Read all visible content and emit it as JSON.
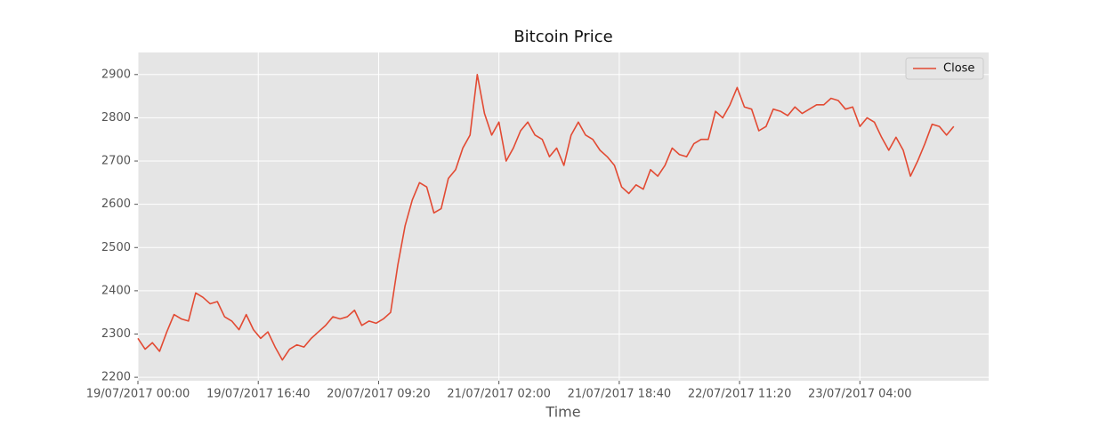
{
  "chart_data": {
    "type": "line",
    "title": "Bitcoin Price",
    "x_label": "Time",
    "x": [
      "2017-07-19T00:00",
      "2017-07-19T01:00",
      "2017-07-19T02:00",
      "2017-07-19T03:00",
      "2017-07-19T04:00",
      "2017-07-19T05:00",
      "2017-07-19T06:00",
      "2017-07-19T07:00",
      "2017-07-19T08:00",
      "2017-07-19T09:00",
      "2017-07-19T10:00",
      "2017-07-19T11:00",
      "2017-07-19T12:00",
      "2017-07-19T13:00",
      "2017-07-19T14:00",
      "2017-07-19T15:00",
      "2017-07-19T16:00",
      "2017-07-19T17:00",
      "2017-07-19T18:00",
      "2017-07-19T19:00",
      "2017-07-19T20:00",
      "2017-07-19T21:00",
      "2017-07-19T22:00",
      "2017-07-19T23:00",
      "2017-07-20T00:00",
      "2017-07-20T01:00",
      "2017-07-20T02:00",
      "2017-07-20T03:00",
      "2017-07-20T04:00",
      "2017-07-20T05:00",
      "2017-07-20T06:00",
      "2017-07-20T07:00",
      "2017-07-20T08:00",
      "2017-07-20T09:00",
      "2017-07-20T10:00",
      "2017-07-20T11:00",
      "2017-07-20T12:00",
      "2017-07-20T13:00",
      "2017-07-20T14:00",
      "2017-07-20T15:00",
      "2017-07-20T16:00",
      "2017-07-20T17:00",
      "2017-07-20T18:00",
      "2017-07-20T19:00",
      "2017-07-20T20:00",
      "2017-07-20T21:00",
      "2017-07-20T22:00",
      "2017-07-20T23:00",
      "2017-07-21T00:00",
      "2017-07-21T01:00",
      "2017-07-21T02:00",
      "2017-07-21T03:00",
      "2017-07-21T04:00",
      "2017-07-21T05:00",
      "2017-07-21T06:00",
      "2017-07-21T07:00",
      "2017-07-21T08:00",
      "2017-07-21T09:00",
      "2017-07-21T10:00",
      "2017-07-21T11:00",
      "2017-07-21T12:00",
      "2017-07-21T13:00",
      "2017-07-21T14:00",
      "2017-07-21T15:00",
      "2017-07-21T16:00",
      "2017-07-21T17:00",
      "2017-07-21T18:00",
      "2017-07-21T19:00",
      "2017-07-21T20:00",
      "2017-07-21T21:00",
      "2017-07-21T22:00",
      "2017-07-21T23:00",
      "2017-07-22T00:00",
      "2017-07-22T01:00",
      "2017-07-22T02:00",
      "2017-07-22T03:00",
      "2017-07-22T04:00",
      "2017-07-22T05:00",
      "2017-07-22T06:00",
      "2017-07-22T07:00",
      "2017-07-22T08:00",
      "2017-07-22T09:00",
      "2017-07-22T10:00",
      "2017-07-22T11:00",
      "2017-07-22T12:00",
      "2017-07-22T13:00",
      "2017-07-22T14:00",
      "2017-07-22T15:00",
      "2017-07-22T16:00",
      "2017-07-22T17:00",
      "2017-07-22T18:00",
      "2017-07-22T19:00",
      "2017-07-22T20:00",
      "2017-07-22T21:00",
      "2017-07-22T22:00",
      "2017-07-22T23:00",
      "2017-07-23T00:00",
      "2017-07-23T01:00",
      "2017-07-23T02:00",
      "2017-07-23T03:00",
      "2017-07-23T04:00",
      "2017-07-23T05:00",
      "2017-07-23T06:00",
      "2017-07-23T07:00",
      "2017-07-23T08:00",
      "2017-07-23T09:00",
      "2017-07-23T10:00",
      "2017-07-23T11:00",
      "2017-07-23T12:00",
      "2017-07-23T13:00",
      "2017-07-23T14:00",
      "2017-07-23T15:00",
      "2017-07-23T16:00",
      "2017-07-23T17:00"
    ],
    "series": [
      {
        "name": "Close",
        "color": "#e24a33",
        "values": [
          2290,
          2265,
          2280,
          2260,
          2305,
          2345,
          2335,
          2330,
          2395,
          2385,
          2370,
          2375,
          2340,
          2330,
          2310,
          2345,
          2310,
          2290,
          2305,
          2270,
          2240,
          2265,
          2275,
          2270,
          2290,
          2305,
          2320,
          2340,
          2335,
          2340,
          2355,
          2320,
          2330,
          2325,
          2335,
          2350,
          2460,
          2550,
          2610,
          2650,
          2640,
          2580,
          2590,
          2660,
          2680,
          2730,
          2760,
          2900,
          2810,
          2760,
          2790,
          2700,
          2730,
          2770,
          2790,
          2760,
          2750,
          2710,
          2730,
          2690,
          2760,
          2790,
          2760,
          2750,
          2725,
          2710,
          2690,
          2640,
          2625,
          2645,
          2635,
          2680,
          2665,
          2690,
          2730,
          2715,
          2710,
          2740,
          2750,
          2750,
          2815,
          2800,
          2830,
          2870,
          2825,
          2820,
          2770,
          2780,
          2820,
          2815,
          2805,
          2825,
          2810,
          2820,
          2830,
          2830,
          2845,
          2840,
          2820,
          2825,
          2780,
          2800,
          2790,
          2755,
          2725,
          2755,
          2725,
          2665,
          2700,
          2740,
          2785,
          2780,
          2760,
          2780
        ]
      }
    ],
    "xlim": [
      "2017-07-19T00:00",
      "2017-07-23T21:50"
    ],
    "xticks": [
      {
        "value": "2017-07-19T00:00",
        "label": "19/07/2017 00:00"
      },
      {
        "value": "2017-07-19T16:40",
        "label": "19/07/2017 16:40"
      },
      {
        "value": "2017-07-20T09:20",
        "label": "20/07/2017 09:20"
      },
      {
        "value": "2017-07-21T02:00",
        "label": "21/07/2017 02:00"
      },
      {
        "value": "2017-07-21T18:40",
        "label": "21/07/2017 18:40"
      },
      {
        "value": "2017-07-22T11:20",
        "label": "22/07/2017 11:20"
      },
      {
        "value": "2017-07-23T04:00",
        "label": "23/07/2017 04:00"
      }
    ],
    "ylim": [
      2192,
      2951
    ],
    "yticks": [
      2200,
      2300,
      2400,
      2500,
      2600,
      2700,
      2800,
      2900
    ],
    "grid": true,
    "legend": "upper right"
  }
}
